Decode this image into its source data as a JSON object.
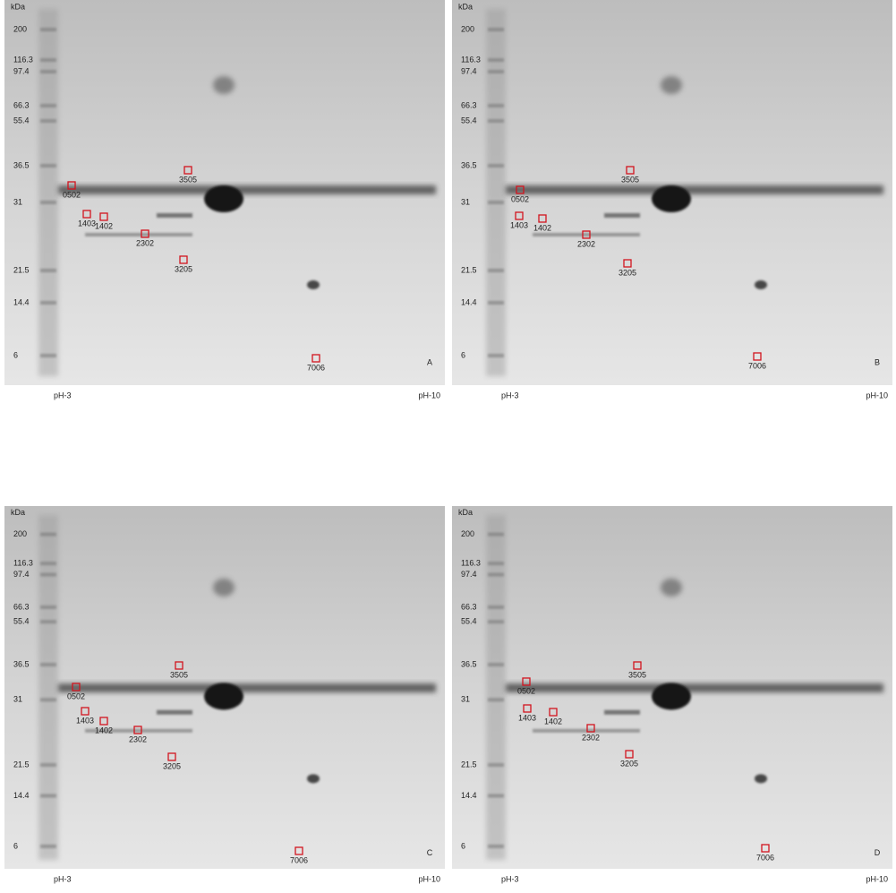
{
  "panels": [
    {
      "letter": "A",
      "unit": "kDa",
      "mw_markers": [
        "200",
        "116.3",
        "97.4",
        "66.3",
        "55.4",
        "36.5",
        "31",
        "21.5",
        "14.4",
        "6"
      ],
      "ph_start": "pH-3",
      "ph_end": "pH-10",
      "spots": [
        "0502",
        "3505",
        "1403",
        "1402",
        "2302",
        "3205",
        "7006"
      ]
    },
    {
      "letter": "B",
      "unit": "kDa",
      "mw_markers": [
        "200",
        "116.3",
        "97.4",
        "66.3",
        "55.4",
        "36.5",
        "31",
        "21.5",
        "14.4",
        "6"
      ],
      "ph_start": "pH-3",
      "ph_end": "pH-10",
      "spots": [
        "0502",
        "3505",
        "1403",
        "1402",
        "2302",
        "3205",
        "7006"
      ]
    },
    {
      "letter": "C",
      "unit": "kDa",
      "mw_markers": [
        "200",
        "116.3",
        "97.4",
        "66.3",
        "55.4",
        "36.5",
        "31",
        "21.5",
        "14.4",
        "6"
      ],
      "ph_start": "pH-3",
      "ph_end": "pH-10",
      "spots": [
        "0502",
        "3505",
        "1403",
        "1402",
        "2302",
        "3205",
        "7006"
      ]
    },
    {
      "letter": "D",
      "unit": "kDa",
      "mw_markers": [
        "200",
        "116.3",
        "97.4",
        "66.3",
        "55.4",
        "36.5",
        "31",
        "21.5",
        "14.4",
        "6"
      ],
      "ph_start": "pH-3",
      "ph_end": "pH-10",
      "spots": [
        "0502",
        "3505",
        "1403",
        "1402",
        "2302",
        "3205",
        "7006"
      ]
    }
  ]
}
